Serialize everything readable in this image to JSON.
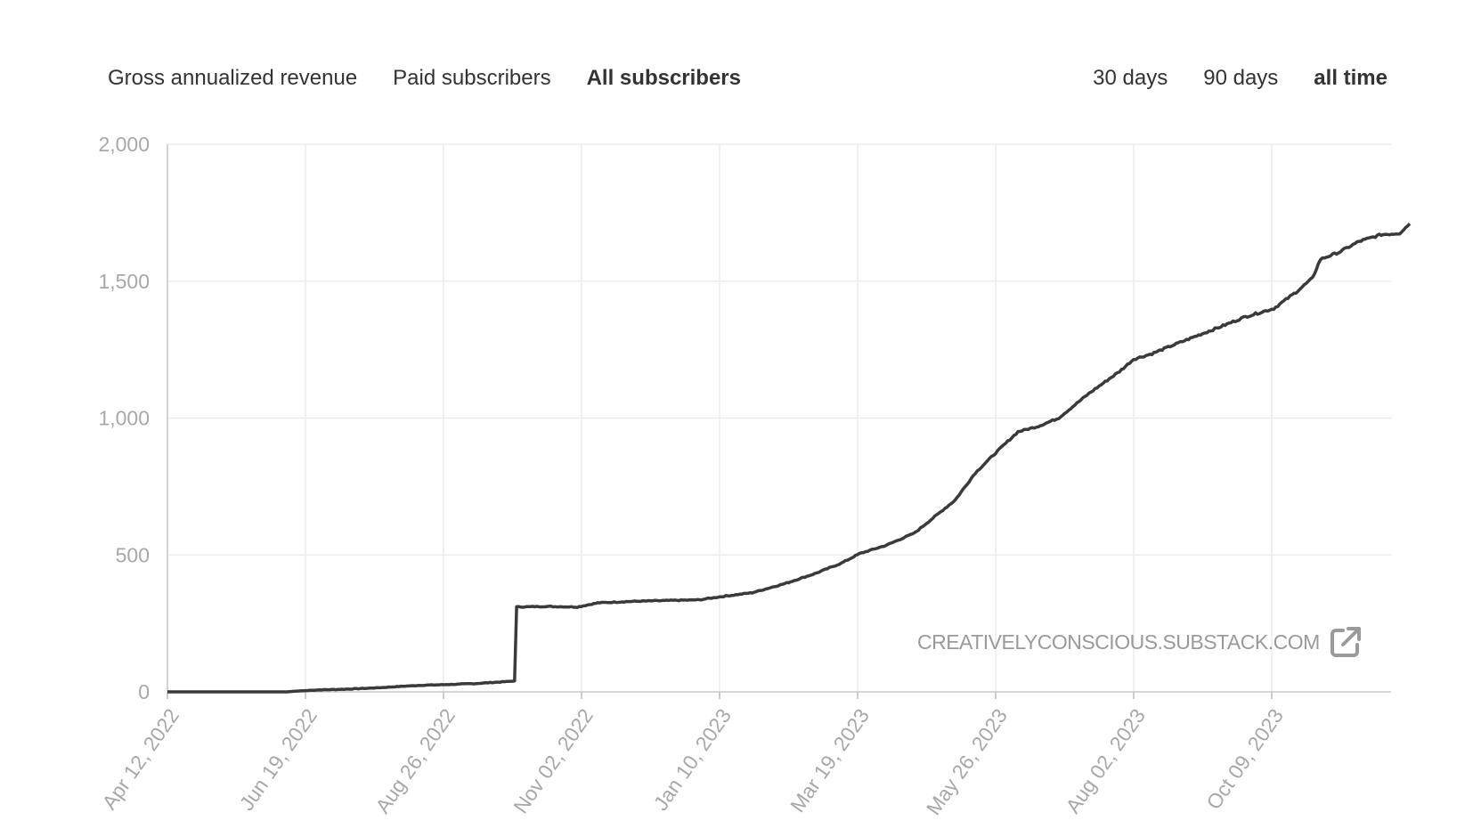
{
  "metric_tabs": [
    {
      "label": "Gross annualized revenue",
      "active": false
    },
    {
      "label": "Paid subscribers",
      "active": false
    },
    {
      "label": "All subscribers",
      "active": true
    }
  ],
  "range_tabs": [
    {
      "label": "30 days",
      "active": false
    },
    {
      "label": "90 days",
      "active": false
    },
    {
      "label": "all time",
      "active": true
    }
  ],
  "watermark": {
    "text": "CREATIVELYCONSCIOUS.SUBSTACK.COM",
    "icon": "external-link-icon"
  },
  "colors": {
    "line": "#3a3a3a",
    "grid": "#ececec",
    "axis_text": "#a8a8a8"
  },
  "chart_data": {
    "type": "line",
    "title": "",
    "xlabel": "",
    "ylabel": "",
    "x_tick_labels": [
      "Apr 12, 2022",
      "Jun 19, 2022",
      "Aug 26, 2022",
      "Nov 02, 2022",
      "Jan 10, 2023",
      "Mar 19, 2023",
      "May 26, 2023",
      "Aug 02, 2023",
      "Oct 09, 2023"
    ],
    "y_ticks": [
      0,
      500,
      1000,
      1500,
      2000
    ],
    "y_tick_labels": [
      "0",
      "500",
      "1,000",
      "1,500",
      "2,000"
    ],
    "ylim": [
      0,
      2000
    ],
    "xlim": [
      "2022-04-12",
      "2023-12-15"
    ],
    "grid": true,
    "series": [
      {
        "values": [
          [
            "2022-04-12",
            0
          ],
          [
            "2022-05-20",
            0
          ],
          [
            "2022-06-10",
            0
          ],
          [
            "2022-06-15",
            3
          ],
          [
            "2022-06-25",
            7
          ],
          [
            "2022-07-10",
            10
          ],
          [
            "2022-07-25",
            15
          ],
          [
            "2022-08-05",
            20
          ],
          [
            "2022-08-15",
            24
          ],
          [
            "2022-08-25",
            26
          ],
          [
            "2022-09-10",
            30
          ],
          [
            "2022-09-25",
            37
          ],
          [
            "2022-09-30",
            40
          ],
          [
            "2022-10-01",
            310
          ],
          [
            "2022-10-15",
            312
          ],
          [
            "2022-10-31",
            310
          ],
          [
            "2022-11-10",
            325
          ],
          [
            "2022-11-25",
            330
          ],
          [
            "2022-12-10",
            333
          ],
          [
            "2022-12-30",
            336
          ],
          [
            "2023-01-10",
            348
          ],
          [
            "2023-01-25",
            362
          ],
          [
            "2023-02-10",
            395
          ],
          [
            "2023-02-25",
            432
          ],
          [
            "2023-03-10",
            470
          ],
          [
            "2023-03-19",
            505
          ],
          [
            "2023-04-01",
            535
          ],
          [
            "2023-04-15",
            580
          ],
          [
            "2023-04-25",
            640
          ],
          [
            "2023-05-05",
            700
          ],
          [
            "2023-05-15",
            800
          ],
          [
            "2023-05-26",
            880
          ],
          [
            "2023-06-05",
            950
          ],
          [
            "2023-06-15",
            970
          ],
          [
            "2023-06-25",
            1000
          ],
          [
            "2023-07-10",
            1090
          ],
          [
            "2023-07-25",
            1170
          ],
          [
            "2023-08-01",
            1215
          ],
          [
            "2023-08-10",
            1235
          ],
          [
            "2023-08-20",
            1265
          ],
          [
            "2023-09-01",
            1300
          ],
          [
            "2023-09-15",
            1340
          ],
          [
            "2023-09-25",
            1370
          ],
          [
            "2023-10-09",
            1400
          ],
          [
            "2023-10-20",
            1460
          ],
          [
            "2023-10-28",
            1510
          ],
          [
            "2023-11-01",
            1580
          ],
          [
            "2023-11-10",
            1605
          ],
          [
            "2023-11-20",
            1645
          ],
          [
            "2023-12-01",
            1670
          ],
          [
            "2023-12-10",
            1675
          ],
          [
            "2023-12-15",
            1710
          ]
        ]
      }
    ]
  }
}
